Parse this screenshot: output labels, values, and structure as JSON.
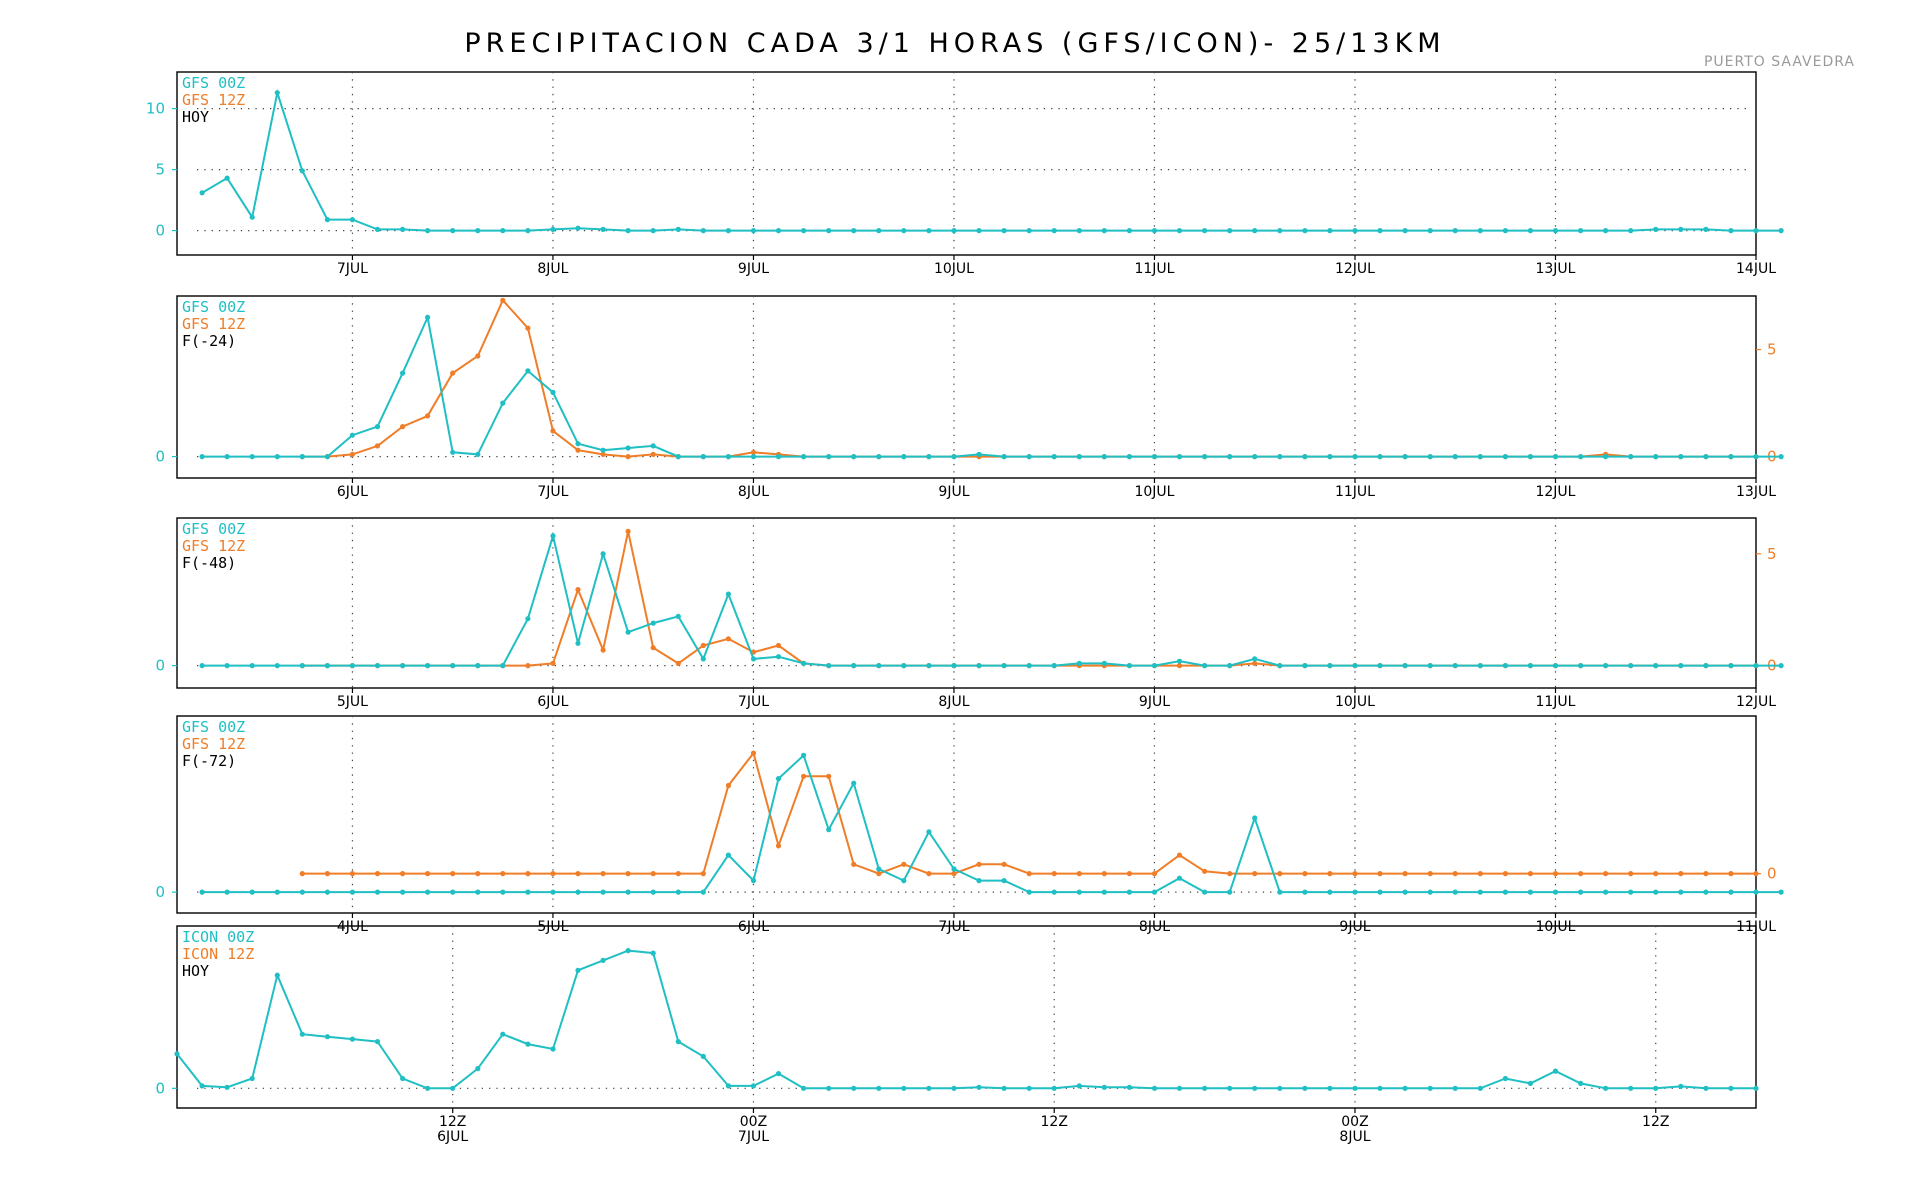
{
  "title": "PRECIPITACION CADA 3/1 HORAS (GFS/ICON)- 25/13KM",
  "station": "PUERTO SAAVEDRA",
  "colors": {
    "gfs00": "#1fbfc4",
    "gfs12": "#f07d27",
    "frame": "#000000",
    "station": "#9a9a9a",
    "text": "#000000"
  },
  "chart_data": [
    {
      "type": "line",
      "legend": [
        "GFS 00Z",
        "GFS 12Z",
        "HOY"
      ],
      "x_unit": "hours (3h steps)",
      "xlim": [
        0,
        189
      ],
      "ylim": [
        -2,
        13
      ],
      "left_yticks": [
        0,
        5,
        10
      ],
      "right_yticks": [],
      "x_ticks": [
        {
          "pos": 21,
          "label": "7JUL"
        },
        {
          "pos": 45,
          "label": "8JUL"
        },
        {
          "pos": 69,
          "label": "9JUL"
        },
        {
          "pos": 93,
          "label": "10JUL"
        },
        {
          "pos": 117,
          "label": "11JUL"
        },
        {
          "pos": 141,
          "label": "12JUL"
        },
        {
          "pos": 165,
          "label": "13JUL"
        },
        {
          "pos": 189,
          "label": "14JUL"
        }
      ],
      "series": [
        {
          "name": "GFS 00Z",
          "axis": "left",
          "start": 3,
          "step": 3,
          "values": [
            3.1,
            4.3,
            1.1,
            11.3,
            4.9,
            0.9,
            0.9,
            0.1,
            0.1,
            0.0,
            0.0,
            0.0,
            0.0,
            0.0,
            0.1,
            0.2,
            0.1,
            0.0,
            0.0,
            0.1,
            0.0,
            0.0,
            0.0,
            0.0,
            0.0,
            0.0,
            0.0,
            0.0,
            0.0,
            0.0,
            0.0,
            0.0,
            0.0,
            0.0,
            0.0,
            0.0,
            0.0,
            0.0,
            0.0,
            0.0,
            0.0,
            0.0,
            0.0,
            0.0,
            0.0,
            0.0,
            0.0,
            0.0,
            0.0,
            0.0,
            0.0,
            0.0,
            0.0,
            0.0,
            0.0,
            0.0,
            0.0,
            0.0,
            0.1,
            0.1,
            0.1,
            0.0,
            0.0,
            0.0
          ]
        }
      ]
    },
    {
      "type": "line",
      "legend": [
        "GFS 00Z",
        "GFS 12Z",
        "F(-24)"
      ],
      "x_unit": "hours (3h steps)",
      "xlim": [
        0,
        189
      ],
      "ylim": [
        -1,
        7.5
      ],
      "ylim_right": [
        -1,
        7.5
      ],
      "left_yticks": [
        0
      ],
      "right_yticks": [
        0,
        5
      ],
      "x_ticks": [
        {
          "pos": 21,
          "label": "6JUL"
        },
        {
          "pos": 45,
          "label": "7JUL"
        },
        {
          "pos": 69,
          "label": "8JUL"
        },
        {
          "pos": 93,
          "label": "9JUL"
        },
        {
          "pos": 117,
          "label": "10JUL"
        },
        {
          "pos": 141,
          "label": "11JUL"
        },
        {
          "pos": 165,
          "label": "12JUL"
        },
        {
          "pos": 189,
          "label": "13JUL"
        }
      ],
      "series": [
        {
          "name": "GFS 00Z",
          "axis": "left",
          "start": 3,
          "step": 3,
          "values": [
            0.0,
            0.0,
            0.0,
            0.0,
            0.0,
            0.0,
            1.0,
            1.4,
            3.9,
            6.5,
            0.2,
            0.1,
            2.5,
            4.0,
            3.0,
            0.6,
            0.3,
            0.4,
            0.5,
            0.0,
            0.0,
            0.0,
            0.0,
            0.0,
            0.0,
            0.0,
            0.0,
            0.0,
            0.0,
            0.0,
            0.0,
            0.1,
            0.0,
            0.0,
            0.0,
            0.0,
            0.0,
            0.0,
            0.0,
            0.0,
            0.0,
            0.0,
            0.0,
            0.0,
            0.0,
            0.0,
            0.0,
            0.0,
            0.0,
            0.0,
            0.0,
            0.0,
            0.0,
            0.0,
            0.0,
            0.0,
            0.0,
            0.0,
            0.0,
            0.0,
            0.0,
            0.0,
            0.0,
            0.0
          ]
        },
        {
          "name": "GFS 12Z",
          "axis": "right",
          "start": 15,
          "step": 3,
          "values": [
            0.0,
            0.0,
            0.1,
            0.5,
            1.4,
            1.9,
            3.9,
            4.7,
            7.3,
            6.0,
            1.2,
            0.3,
            0.1,
            0.0,
            0.1,
            0.0,
            0.0,
            0.0,
            0.2,
            0.1,
            0.0,
            0.0,
            0.0,
            0.0,
            0.0,
            0.0,
            0.0,
            0.0,
            0.0,
            0.0,
            0.0,
            0.0,
            0.0,
            0.0,
            0.0,
            0.0,
            0.0,
            0.0,
            0.0,
            0.0,
            0.0,
            0.0,
            0.0,
            0.0,
            0.0,
            0.0,
            0.0,
            0.0,
            0.0,
            0.0,
            0.0,
            0.0,
            0.1,
            0.0,
            0.0,
            0.0,
            0.0,
            0.0,
            0.0
          ]
        }
      ]
    },
    {
      "type": "line",
      "legend": [
        "GFS 00Z",
        "GFS 12Z",
        "F(-48)"
      ],
      "x_unit": "hours (3h steps)",
      "xlim": [
        0,
        189
      ],
      "ylim": [
        -1,
        6.6
      ],
      "ylim_right": [
        -1,
        6.6
      ],
      "left_yticks": [
        0
      ],
      "right_yticks": [
        0,
        5
      ],
      "x_ticks": [
        {
          "pos": 21,
          "label": "5JUL"
        },
        {
          "pos": 45,
          "label": "6JUL"
        },
        {
          "pos": 69,
          "label": "7JUL"
        },
        {
          "pos": 93,
          "label": "8JUL"
        },
        {
          "pos": 117,
          "label": "9JUL"
        },
        {
          "pos": 141,
          "label": "10JUL"
        },
        {
          "pos": 165,
          "label": "11JUL"
        },
        {
          "pos": 189,
          "label": "12JUL"
        }
      ],
      "series": [
        {
          "name": "GFS 00Z",
          "axis": "left",
          "start": 3,
          "step": 3,
          "values": [
            0.0,
            0.0,
            0.0,
            0.0,
            0.0,
            0.0,
            0.0,
            0.0,
            0.0,
            0.0,
            0.0,
            0.0,
            0.0,
            2.1,
            5.8,
            1.0,
            5.0,
            1.5,
            1.9,
            2.2,
            0.3,
            3.2,
            0.3,
            0.4,
            0.1,
            0.0,
            0.0,
            0.0,
            0.0,
            0.0,
            0.0,
            0.0,
            0.0,
            0.0,
            0.0,
            0.1,
            0.1,
            0.0,
            0.0,
            0.2,
            0.0,
            0.0,
            0.3,
            0.0,
            0.0,
            0.0,
            0.0,
            0.0,
            0.0,
            0.0,
            0.0,
            0.0,
            0.0,
            0.0,
            0.0,
            0.0,
            0.0,
            0.0,
            0.0,
            0.0,
            0.0,
            0.0,
            0.0,
            0.0
          ]
        },
        {
          "name": "GFS 12Z",
          "axis": "right",
          "start": 15,
          "step": 3,
          "values": [
            0.0,
            0.0,
            0.0,
            0.0,
            0.0,
            0.0,
            0.0,
            0.0,
            0.0,
            0.0,
            0.1,
            3.4,
            0.7,
            6.0,
            0.8,
            0.1,
            0.9,
            1.2,
            0.6,
            0.9,
            0.1,
            0.0,
            0.0,
            0.0,
            0.0,
            0.0,
            0.0,
            0.0,
            0.0,
            0.0,
            0.0,
            0.0,
            0.0,
            0.0,
            0.0,
            0.0,
            0.0,
            0.0,
            0.1,
            0.0,
            0.0,
            0.0,
            0.0,
            0.0,
            0.0,
            0.0,
            0.0,
            0.0,
            0.0,
            0.0,
            0.0,
            0.0,
            0.0,
            0.0,
            0.0,
            0.0,
            0.0,
            0.0,
            0.0
          ]
        }
      ]
    },
    {
      "type": "line",
      "legend": [
        "GFS 00Z",
        "GFS 12Z",
        "F(-72)"
      ],
      "x_unit": "hours (3h steps)",
      "xlim": [
        0,
        189
      ],
      "ylim": [
        -0.9,
        7.6
      ],
      "ylim_right": [
        -1.7,
        6.8
      ],
      "left_yticks": [
        0
      ],
      "right_yticks": [
        0
      ],
      "x_ticks": [
        {
          "pos": 21,
          "label": "4JUL"
        },
        {
          "pos": 45,
          "label": "5JUL"
        },
        {
          "pos": 69,
          "label": "6JUL"
        },
        {
          "pos": 93,
          "label": "7JUL"
        },
        {
          "pos": 117,
          "label": "8JUL"
        },
        {
          "pos": 141,
          "label": "9JUL"
        },
        {
          "pos": 165,
          "label": "10JUL"
        },
        {
          "pos": 189,
          "label": "11JUL"
        }
      ],
      "series": [
        {
          "name": "GFS 00Z",
          "axis": "left",
          "start": 3,
          "step": 3,
          "values": [
            0.0,
            0.0,
            0.0,
            0.0,
            0.0,
            0.0,
            0.0,
            0.0,
            0.0,
            0.0,
            0.0,
            0.0,
            0.0,
            0.0,
            0.0,
            0.0,
            0.0,
            0.0,
            0.0,
            0.0,
            0.0,
            1.6,
            0.5,
            4.9,
            5.9,
            2.7,
            4.7,
            1.0,
            0.5,
            2.6,
            1.0,
            0.5,
            0.5,
            0.0,
            0.0,
            0.0,
            0.0,
            0.0,
            0.0,
            0.6,
            0.0,
            0.0,
            3.2,
            0.0,
            0.0,
            0.0,
            0.0,
            0.0,
            0.0,
            0.0,
            0.0,
            0.0,
            0.0,
            0.0,
            0.0,
            0.0,
            0.0,
            0.0,
            0.0,
            0.0,
            0.0,
            0.0,
            0.0,
            0.0
          ]
        },
        {
          "name": "GFS 12Z",
          "axis": "right",
          "start": 15,
          "step": 3,
          "values": [
            0.0,
            0.0,
            0.0,
            0.0,
            0.0,
            0.0,
            0.0,
            0.0,
            0.0,
            0.0,
            0.0,
            0.0,
            0.0,
            0.0,
            0.0,
            0.0,
            0.0,
            3.8,
            5.2,
            1.2,
            4.2,
            4.2,
            0.4,
            0.0,
            0.4,
            0.0,
            0.0,
            0.4,
            0.4,
            0.0,
            0.0,
            0.0,
            0.0,
            0.0,
            0.0,
            0.8,
            0.1,
            0.0,
            0.0,
            0.0,
            0.0,
            0.0,
            0.0,
            0.0,
            0.0,
            0.0,
            0.0,
            0.0,
            0.0,
            0.0,
            0.0,
            0.0,
            0.0,
            0.0,
            0.0,
            0.0,
            0.0,
            0.0,
            0.0
          ]
        }
      ]
    },
    {
      "type": "line",
      "legend": [
        "ICON 00Z",
        "ICON 12Z",
        "HOY"
      ],
      "x_unit": "hours (1h steps)",
      "xlim": [
        0,
        63
      ],
      "ylim": [
        -0.4,
        3.3
      ],
      "left_yticks": [
        0
      ],
      "right_yticks": [],
      "x_ticks": [
        {
          "pos": 11,
          "label": "12Z",
          "label2": "6JUL"
        },
        {
          "pos": 23,
          "label": "00Z",
          "label2": "7JUL"
        },
        {
          "pos": 35,
          "label": "12Z",
          "label2": ""
        },
        {
          "pos": 47,
          "label": "00Z",
          "label2": "8JUL"
        },
        {
          "pos": 59,
          "label": "12Z",
          "label2": ""
        }
      ],
      "series": [
        {
          "name": "ICON 00Z",
          "axis": "left",
          "start": 0,
          "step": 1,
          "values": [
            0.7,
            0.05,
            0.02,
            0.2,
            2.3,
            1.1,
            1.05,
            1.0,
            0.95,
            0.2,
            0.0,
            0.0,
            0.4,
            1.1,
            0.9,
            0.8,
            2.4,
            2.6,
            2.8,
            2.75,
            0.95,
            0.65,
            0.05,
            0.05,
            0.3,
            0.0,
            0.0,
            0.0,
            0.0,
            0.0,
            0.0,
            0.0,
            0.02,
            0.0,
            0.0,
            0.0,
            0.05,
            0.02,
            0.02,
            0.0,
            0.0,
            0.0,
            0.0,
            0.0,
            0.0,
            0.0,
            0.0,
            0.0,
            0.0,
            0.0,
            0.0,
            0.0,
            0.0,
            0.2,
            0.1,
            0.35,
            0.1,
            0.0,
            0.0,
            0.0,
            0.04,
            0.0,
            0.0,
            0.0
          ]
        }
      ]
    }
  ]
}
